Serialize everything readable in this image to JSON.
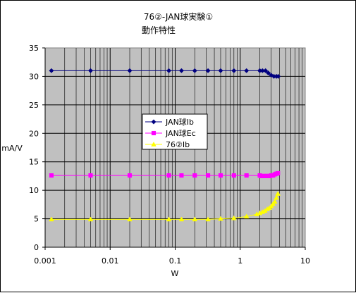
{
  "chart_data": {
    "type": "scatter",
    "title": "76②-JAN球実験①",
    "subtitle": "動作特性",
    "xlabel": "W",
    "ylabel": "mA/V",
    "x_scale": "log",
    "xlim": [
      0.001,
      10
    ],
    "ylim": [
      0,
      35
    ],
    "x_ticks": [
      0.001,
      0.01,
      0.1,
      1,
      10
    ],
    "x_tick_labels": [
      "0.001",
      "0.01",
      "0.1",
      "1",
      "10"
    ],
    "y_ticks": [
      0,
      5,
      10,
      15,
      20,
      25,
      30,
      35
    ],
    "y_tick_labels": [
      "0",
      "5",
      "10",
      "15",
      "20",
      "25",
      "30",
      "35"
    ],
    "grid": true,
    "legend_position": "center-left",
    "series": [
      {
        "name": "JAN球Ib",
        "color": "#000080",
        "marker": "diamond",
        "x": [
          0.00125,
          0.005,
          0.02,
          0.08,
          0.125,
          0.2,
          0.32,
          0.5,
          0.8,
          1.25,
          2.0,
          2.2,
          2.45,
          2.7,
          3.0,
          3.3,
          3.6,
          3.85
        ],
        "y": [
          31,
          31,
          31,
          31,
          31,
          31,
          31,
          31,
          31,
          31,
          31,
          31,
          31,
          30.6,
          30.2,
          30,
          30,
          30
        ]
      },
      {
        "name": "JAN球Ec",
        "color": "#ff00ff",
        "marker": "square",
        "x": [
          0.00125,
          0.005,
          0.02,
          0.08,
          0.125,
          0.2,
          0.32,
          0.5,
          0.8,
          1.25,
          2.0,
          2.1,
          2.2,
          2.3,
          2.4,
          2.5,
          2.6,
          2.7,
          2.8,
          3.0,
          3.2,
          3.4,
          3.6,
          3.8
        ],
        "y": [
          12.6,
          12.6,
          12.6,
          12.6,
          12.6,
          12.6,
          12.6,
          12.6,
          12.6,
          12.6,
          12.6,
          12.5,
          12.5,
          12.5,
          12.5,
          12.5,
          12.5,
          12.5,
          12.5,
          12.6,
          12.6,
          12.8,
          12.9,
          13.0
        ]
      },
      {
        "name": "76②Ib",
        "color": "#ffff00",
        "marker": "triangle",
        "x": [
          0.00125,
          0.005,
          0.02,
          0.08,
          0.125,
          0.2,
          0.32,
          0.5,
          0.8,
          1.25,
          1.8,
          2.0,
          2.2,
          2.4,
          2.6,
          2.8,
          3.0,
          3.2,
          3.4,
          3.6,
          3.8
        ],
        "y": [
          4.9,
          4.9,
          4.9,
          4.9,
          4.9,
          4.9,
          4.9,
          5.0,
          5.1,
          5.4,
          5.8,
          6.0,
          6.2,
          6.4,
          6.7,
          6.9,
          7.2,
          7.6,
          8.0,
          8.7,
          9.4
        ]
      }
    ]
  }
}
